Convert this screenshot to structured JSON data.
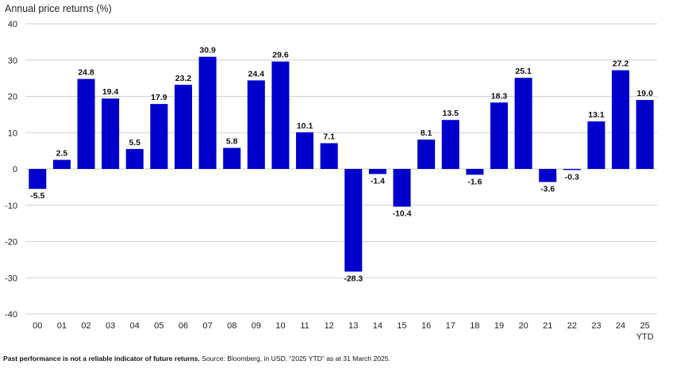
{
  "chart_data": {
    "type": "bar",
    "ylabel": "Annual price returns (%)",
    "ylim": [
      -40,
      40
    ],
    "yticks": [
      40,
      30,
      20,
      10,
      0,
      -10,
      -20,
      -30,
      -40
    ],
    "grid": true,
    "categories": [
      "00",
      "01",
      "02",
      "03",
      "04",
      "05",
      "06",
      "07",
      "08",
      "09",
      "10",
      "11",
      "12",
      "13",
      "14",
      "15",
      "16",
      "17",
      "18",
      "19",
      "20",
      "21",
      "22",
      "23",
      "24",
      "25"
    ],
    "category_sublabels": {
      "25": "YTD"
    },
    "values": [
      -5.5,
      2.5,
      24.8,
      19.4,
      5.5,
      17.9,
      23.2,
      30.9,
      5.8,
      24.4,
      29.6,
      10.1,
      7.1,
      -28.3,
      -1.4,
      -10.4,
      8.1,
      13.5,
      -1.6,
      18.3,
      25.1,
      -3.6,
      -0.3,
      13.1,
      27.2,
      19.0
    ],
    "data_labels": [
      "-5.5",
      "2.5",
      "24.8",
      "19.4",
      "5.5",
      "17.9",
      "23.2",
      "30.9",
      "5.8",
      "24.4",
      "29.6",
      "10.1",
      "7.1",
      "-28.3",
      "-1.4",
      "-10.4",
      "8.1",
      "13.5",
      "-1.6",
      "18.3",
      "25.1",
      "-3.6",
      "-0.3",
      "13.1",
      "27.2",
      "19.0"
    ],
    "bar_color": "#0000cc",
    "grid_color": "#cfcfcf"
  },
  "footnote": {
    "bold": "Past performance is not a reliable indicator of future returns.",
    "text": " Source: Bloomberg, in USD. “2025 YTD” as at 31 March 2025."
  }
}
